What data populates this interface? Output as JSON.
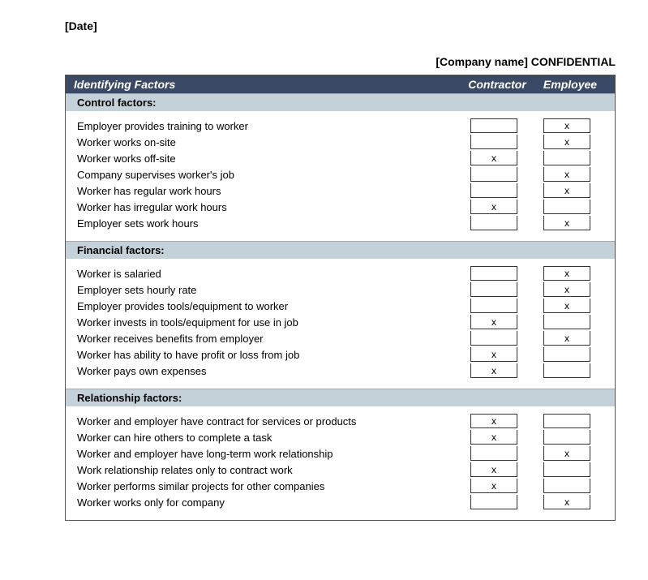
{
  "date_placeholder": "[Date]",
  "confidential_line": "[Company name] CONFIDENTIAL",
  "header": {
    "factors": "Identifying Factors",
    "col1": "Contractor",
    "col2": "Employee"
  },
  "mark_glyph": "x",
  "colors": {
    "header_bg": "#3a4a66",
    "section_bg": "#c5d1d8",
    "border": "#333333",
    "text": "#000000"
  },
  "sections": [
    {
      "title": "Control factors:",
      "rows": [
        {
          "label": "Employer provides training to worker",
          "contractor": false,
          "employee": true
        },
        {
          "label": "Worker works on-site",
          "contractor": false,
          "employee": true
        },
        {
          "label": "Worker works off-site",
          "contractor": true,
          "employee": false
        },
        {
          "label": "Company supervises worker's job",
          "contractor": false,
          "employee": true
        },
        {
          "label": "Worker has regular work hours",
          "contractor": false,
          "employee": true
        },
        {
          "label": "Worker has irregular work hours",
          "contractor": true,
          "employee": false
        },
        {
          "label": "Employer sets work hours",
          "contractor": false,
          "employee": true
        }
      ]
    },
    {
      "title": "Financial factors:",
      "rows": [
        {
          "label": "Worker is salaried",
          "contractor": false,
          "employee": true
        },
        {
          "label": "Employer sets hourly rate",
          "contractor": false,
          "employee": true
        },
        {
          "label": "Employer provides tools/equipment to worker",
          "contractor": false,
          "employee": true
        },
        {
          "label": "Worker invests in tools/equipment for use in job",
          "contractor": true,
          "employee": false
        },
        {
          "label": "Worker receives benefits from employer",
          "contractor": false,
          "employee": true
        },
        {
          "label": "Worker has ability to have profit or loss from job",
          "contractor": true,
          "employee": false
        },
        {
          "label": "Worker pays own expenses",
          "contractor": true,
          "employee": false
        }
      ]
    },
    {
      "title": "Relationship factors:",
      "rows": [
        {
          "label": "Worker and employer have contract for services or products",
          "contractor": true,
          "employee": false
        },
        {
          "label": "Worker can hire others to complete a task",
          "contractor": true,
          "employee": false
        },
        {
          "label": "Worker and employer have long-term work relationship",
          "contractor": false,
          "employee": true
        },
        {
          "label": "Work relationship relates only to contract work",
          "contractor": true,
          "employee": false
        },
        {
          "label": "Worker performs similar projects for other companies",
          "contractor": true,
          "employee": false
        },
        {
          "label": "Worker works only for company",
          "contractor": false,
          "employee": true
        }
      ]
    }
  ]
}
